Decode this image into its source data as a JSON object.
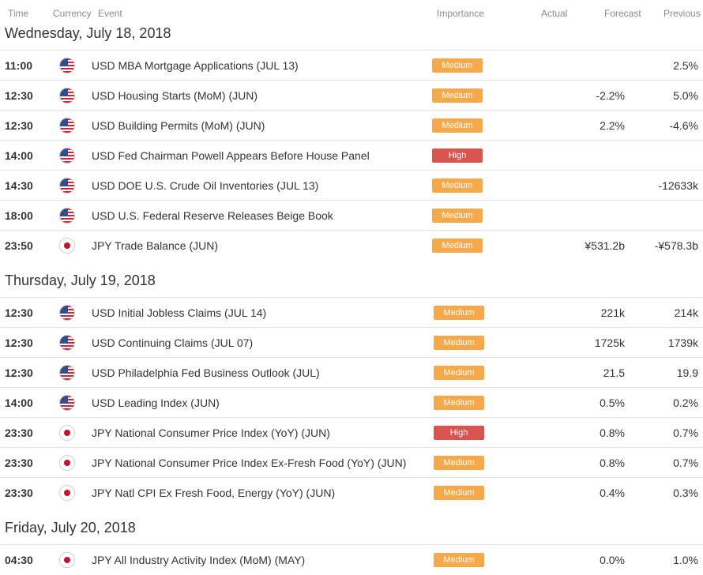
{
  "header": {
    "time": "Time",
    "currency": "Currency",
    "event": "Event",
    "importance": "Importance",
    "actual": "Actual",
    "forecast": "Forecast",
    "previous": "Previous"
  },
  "colors": {
    "medium": "#f5a94a",
    "high": "#d9534f"
  },
  "days": [
    {
      "label": "Wednesday, July 18, 2018",
      "events": [
        {
          "time": "11:00",
          "flag": "us-flag-icon",
          "event": "USD MBA Mortgage Applications (JUL 13)",
          "importance": "Medium",
          "actual": "",
          "forecast": "",
          "previous": "2.5%"
        },
        {
          "time": "12:30",
          "flag": "us-flag-icon",
          "event": "USD Housing Starts (MoM) (JUN)",
          "importance": "Medium",
          "actual": "",
          "forecast": "-2.2%",
          "previous": "5.0%"
        },
        {
          "time": "12:30",
          "flag": "us-flag-icon",
          "event": "USD Building Permits (MoM) (JUN)",
          "importance": "Medium",
          "actual": "",
          "forecast": "2.2%",
          "previous": "-4.6%"
        },
        {
          "time": "14:00",
          "flag": "us-flag-icon",
          "event": "USD Fed Chairman Powell Appears Before House Panel",
          "importance": "High",
          "actual": "",
          "forecast": "",
          "previous": ""
        },
        {
          "time": "14:30",
          "flag": "us-flag-icon",
          "event": "USD DOE U.S. Crude Oil Inventories (JUL 13)",
          "importance": "Medium",
          "actual": "",
          "forecast": "",
          "previous": "-12633k"
        },
        {
          "time": "18:00",
          "flag": "us-flag-icon",
          "event": "USD U.S. Federal Reserve Releases Beige Book",
          "importance": "Medium",
          "actual": "",
          "forecast": "",
          "previous": ""
        },
        {
          "time": "23:50",
          "flag": "jp-flag-icon",
          "event": "JPY Trade Balance (JUN)",
          "importance": "Medium",
          "actual": "",
          "forecast": "¥531.2b",
          "previous": "-¥578.3b"
        }
      ]
    },
    {
      "label": "Thursday, July 19, 2018",
      "events": [
        {
          "time": "12:30",
          "flag": "us-flag-icon",
          "event": "USD Initial Jobless Claims (JUL 14)",
          "importance": "Medium",
          "actual": "",
          "forecast": "221k",
          "previous": "214k"
        },
        {
          "time": "12:30",
          "flag": "us-flag-icon",
          "event": "USD Continuing Claims (JUL 07)",
          "importance": "Medium",
          "actual": "",
          "forecast": "1725k",
          "previous": "1739k"
        },
        {
          "time": "12:30",
          "flag": "us-flag-icon",
          "event": "USD Philadelphia Fed Business Outlook (JUL)",
          "importance": "Medium",
          "actual": "",
          "forecast": "21.5",
          "previous": "19.9"
        },
        {
          "time": "14:00",
          "flag": "us-flag-icon",
          "event": "USD Leading Index (JUN)",
          "importance": "Medium",
          "actual": "",
          "forecast": "0.5%",
          "previous": "0.2%"
        },
        {
          "time": "23:30",
          "flag": "jp-flag-icon",
          "event": "JPY National Consumer Price Index (YoY) (JUN)",
          "importance": "High",
          "actual": "",
          "forecast": "0.8%",
          "previous": "0.7%"
        },
        {
          "time": "23:30",
          "flag": "jp-flag-icon",
          "event": "JPY National Consumer Price Index Ex-Fresh Food (YoY) (JUN)",
          "importance": "Medium",
          "actual": "",
          "forecast": "0.8%",
          "previous": "0.7%"
        },
        {
          "time": "23:30",
          "flag": "jp-flag-icon",
          "event": "JPY Natl CPI Ex Fresh Food, Energy (YoY) (JUN)",
          "importance": "Medium",
          "actual": "",
          "forecast": "0.4%",
          "previous": "0.3%"
        }
      ]
    },
    {
      "label": "Friday, July 20, 2018",
      "events": [
        {
          "time": "04:30",
          "flag": "jp-flag-icon",
          "event": "JPY All Industry Activity Index (MoM) (MAY)",
          "importance": "Medium",
          "actual": "",
          "forecast": "0.0%",
          "previous": "1.0%"
        }
      ]
    }
  ]
}
